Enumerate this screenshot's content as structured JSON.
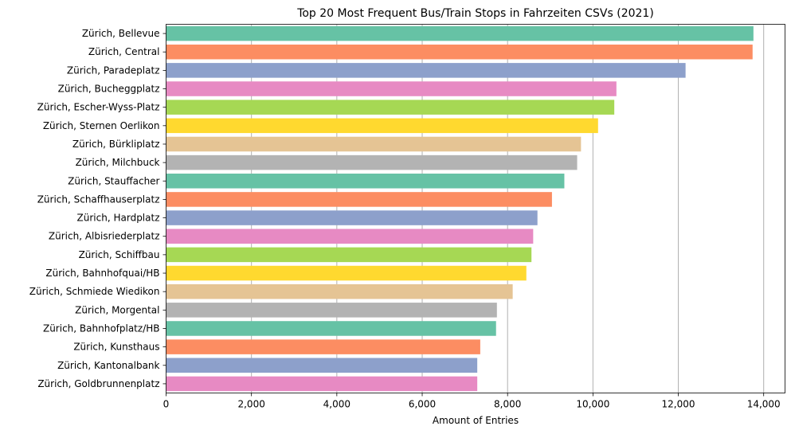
{
  "chart_data": {
    "type": "bar",
    "orientation": "horizontal",
    "title": "Top 20 Most Frequent Bus/Train Stops in Fahrzeiten CSVs (2021)",
    "xlabel": "Amount of Entries",
    "ylabel": "",
    "xlim": [
      0,
      14500
    ],
    "xticks": [
      0,
      2000,
      4000,
      6000,
      8000,
      10000,
      12000,
      14000
    ],
    "xtick_labels": [
      "0",
      "2,000",
      "4,000",
      "6,000",
      "8,000",
      "10,000",
      "12,000",
      "14,000"
    ],
    "grid": "vertical",
    "categories": [
      "Zürich, Bellevue",
      "Zürich, Central",
      "Zürich, Paradeplatz",
      "Zürich, Bucheggplatz",
      "Zürich, Escher-Wyss-Platz",
      "Zürich, Sternen Oerlikon",
      "Zürich, Bürkliplatz",
      "Zürich, Milchbuck",
      "Zürich, Stauffacher",
      "Zürich, Schaffhauserplatz",
      "Zürich, Hardplatz",
      "Zürich, Albisriederplatz",
      "Zürich, Schiffbau",
      "Zürich, Bahnhofquai/HB",
      "Zürich, Schmiede Wiedikon",
      "Zürich, Morgental",
      "Zürich, Bahnhofplatz/HB",
      "Zürich, Kunsthaus",
      "Zürich, Kantonalbank",
      "Zürich, Goldbrunnenplatz"
    ],
    "values": [
      13760,
      13740,
      12170,
      10550,
      10500,
      10120,
      9720,
      9630,
      9330,
      9040,
      8700,
      8600,
      8560,
      8440,
      8120,
      7750,
      7730,
      7360,
      7290,
      7290
    ],
    "colors": [
      "#66c2a5",
      "#fc8d62",
      "#8da0cb",
      "#e78ac3",
      "#a6d854",
      "#ffd92f",
      "#e5c494",
      "#b3b3b3"
    ]
  }
}
